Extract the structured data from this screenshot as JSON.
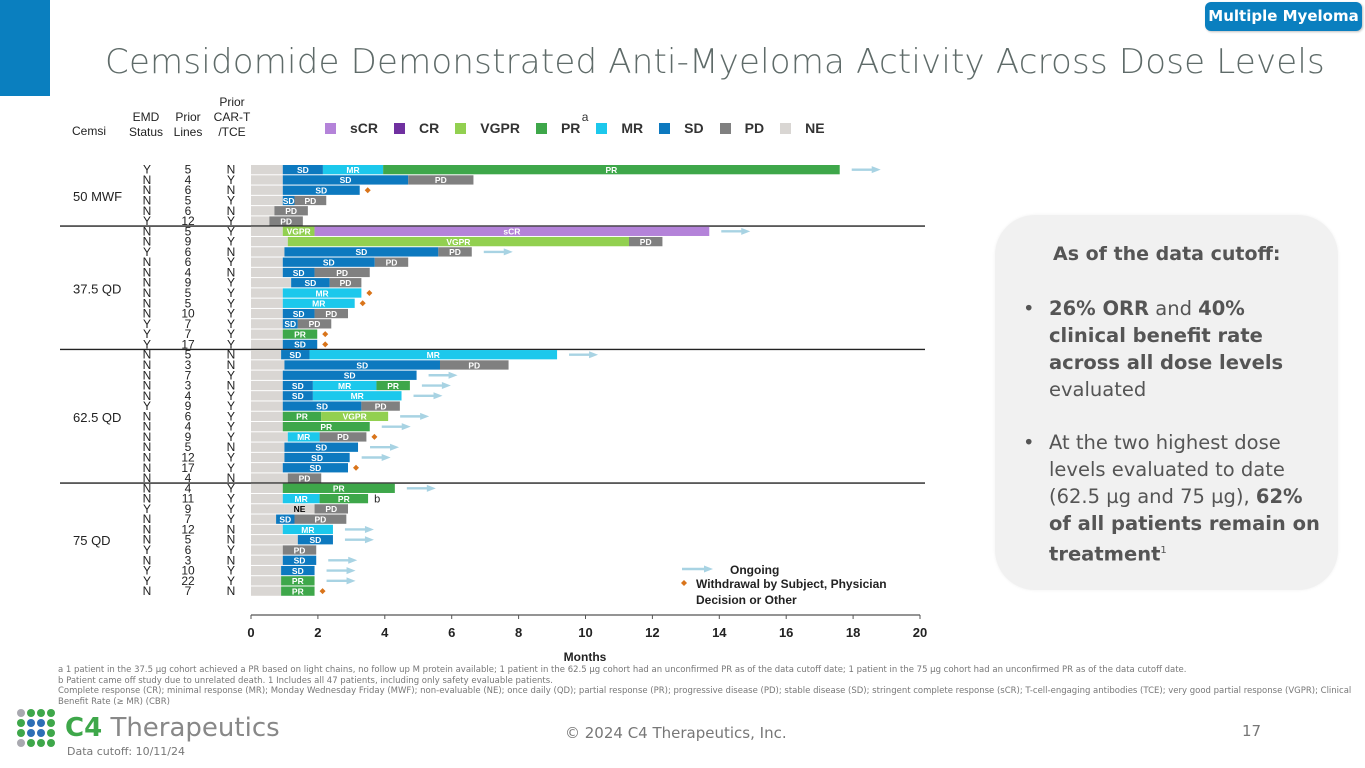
{
  "header": {
    "topic_badge": "Multiple Myeloma",
    "title": "Cemsidomide Demonstrated Anti-Myeloma Activity Across Dose Levels"
  },
  "table_headers": {
    "cemsi": "Cemsi",
    "emd_line1": "EMD",
    "emd_line2": "Status",
    "prior_lines_line1": "Prior",
    "prior_lines_line2": "Lines",
    "prior_cart_line1": "Prior",
    "prior_cart_line2": "CAR-T",
    "prior_cart_line3": "/TCE"
  },
  "legend": {
    "items": [
      {
        "label": "sCR",
        "color": "#b483d9"
      },
      {
        "label": "CR",
        "color": "#7030a0"
      },
      {
        "label": "VGPR",
        "color": "#92d050"
      },
      {
        "label": "PR",
        "color": "#3ea74a",
        "superscript": "a"
      },
      {
        "label": "MR",
        "color": "#1cc8ec"
      },
      {
        "label": "SD",
        "color": "#0d79bf"
      },
      {
        "label": "PD",
        "color": "#808080"
      },
      {
        "label": "NE",
        "color": "#d9d6d3"
      }
    ],
    "ongoing": "Ongoing",
    "withdrawal_line1": "Withdrawal by Subject, Physician",
    "withdrawal_line2": "Decision or Other"
  },
  "chart_data": {
    "type": "swimmer",
    "title": "Cemsidomide Demonstrated Anti-Myeloma Activity Across Dose Levels",
    "xlabel": "Months",
    "ylabel": "",
    "xlim": [
      0,
      20
    ],
    "xticks": [
      0,
      2,
      4,
      6,
      8,
      10,
      12,
      14,
      16,
      18,
      20
    ],
    "colors": {
      "sCR": "#b483d9",
      "CR": "#7030a0",
      "VGPR": "#92d050",
      "PR": "#3ea74a",
      "MR": "#1cc8ec",
      "SD": "#0d79bf",
      "PD": "#808080",
      "NE": "#d9d6d3",
      "baseline": "#d9d6d3",
      "ongoing": "#a8d3e3",
      "withdrawal": "#d9741a"
    },
    "cohorts": [
      {
        "name": "50 MWF",
        "patients": [
          {
            "emd": "Y",
            "lines": "5",
            "cart": "N",
            "segments": [
              [
                "SD",
                0.95,
                2.15
              ],
              [
                "MR",
                2.15,
                3.95
              ],
              [
                "PR",
                3.95,
                17.6
              ]
            ],
            "ongoing": true
          },
          {
            "emd": "N",
            "lines": "4",
            "cart": "Y",
            "segments": [
              [
                "SD",
                0.95,
                4.7
              ],
              [
                "PD",
                4.7,
                6.65
              ]
            ]
          },
          {
            "emd": "N",
            "lines": "6",
            "cart": "N",
            "segments": [
              [
                "SD",
                0.95,
                3.25
              ]
            ],
            "withdrawal": true
          },
          {
            "emd": "N",
            "lines": "5",
            "cart": "Y",
            "segments": [
              [
                "SD",
                0.95,
                1.3
              ],
              [
                "PD",
                1.3,
                2.25
              ]
            ]
          },
          {
            "emd": "N",
            "lines": "6",
            "cart": "N",
            "segments": [
              [
                "PD",
                0.7,
                1.7
              ]
            ]
          },
          {
            "emd": "Y",
            "lines": "12",
            "cart": "Y",
            "segments": [
              [
                "PD",
                0.55,
                1.55
              ]
            ]
          }
        ]
      },
      {
        "name": "37.5 QD",
        "patients": [
          {
            "emd": "N",
            "lines": "5",
            "cart": "Y",
            "segments": [
              [
                "VGPR",
                0.95,
                1.9
              ],
              [
                "sCR",
                1.9,
                13.7
              ]
            ],
            "ongoing": true
          },
          {
            "emd": "N",
            "lines": "9",
            "cart": "Y",
            "segments": [
              [
                "VGPR",
                1.1,
                11.3
              ],
              [
                "PD",
                11.3,
                12.3
              ]
            ]
          },
          {
            "emd": "Y",
            "lines": "6",
            "cart": "N",
            "segments": [
              [
                "SD",
                1.0,
                5.6
              ],
              [
                "PD",
                5.6,
                6.6
              ]
            ],
            "ongoing": true
          },
          {
            "emd": "N",
            "lines": "6",
            "cart": "Y",
            "segments": [
              [
                "SD",
                0.95,
                3.7
              ],
              [
                "PD",
                3.7,
                4.7
              ]
            ]
          },
          {
            "emd": "N",
            "lines": "4",
            "cart": "N",
            "segments": [
              [
                "SD",
                0.95,
                1.9
              ],
              [
                "PD",
                1.9,
                3.55
              ]
            ]
          },
          {
            "emd": "N",
            "lines": "9",
            "cart": "Y",
            "segments": [
              [
                "SD",
                1.2,
                2.35
              ],
              [
                "PD",
                2.35,
                3.3
              ]
            ]
          },
          {
            "emd": "N",
            "lines": "5",
            "cart": "Y",
            "segments": [
              [
                "MR",
                0.95,
                3.3
              ]
            ],
            "withdrawal": true
          },
          {
            "emd": "N",
            "lines": "5",
            "cart": "Y",
            "segments": [
              [
                "MR",
                0.95,
                3.1
              ]
            ],
            "withdrawal": true
          },
          {
            "emd": "N",
            "lines": "10",
            "cart": "Y",
            "segments": [
              [
                "SD",
                0.95,
                1.9
              ],
              [
                "PD",
                1.9,
                2.9
              ]
            ]
          },
          {
            "emd": "Y",
            "lines": "7",
            "cart": "Y",
            "segments": [
              [
                "SD",
                0.95,
                1.4
              ],
              [
                "PD",
                1.4,
                2.4
              ]
            ]
          },
          {
            "emd": "Y",
            "lines": "7",
            "cart": "Y",
            "segments": [
              [
                "PR",
                0.95,
                1.98
              ]
            ],
            "withdrawal": true
          },
          {
            "emd": "Y",
            "lines": "17",
            "cart": "Y",
            "segments": [
              [
                "SD",
                0.95,
                1.98
              ]
            ],
            "withdrawal": true
          }
        ]
      },
      {
        "name": "62.5 QD",
        "patients": [
          {
            "emd": "N",
            "lines": "5",
            "cart": "N",
            "segments": [
              [
                "SD",
                0.9,
                1.75
              ],
              [
                "MR",
                1.75,
                9.15
              ]
            ],
            "ongoing": true
          },
          {
            "emd": "N",
            "lines": "3",
            "cart": "N",
            "segments": [
              [
                "SD",
                1.0,
                5.65
              ],
              [
                "PD",
                5.65,
                7.7
              ]
            ]
          },
          {
            "emd": "N",
            "lines": "7",
            "cart": "Y",
            "segments": [
              [
                "SD",
                0.95,
                4.95
              ]
            ],
            "ongoing": true
          },
          {
            "emd": "N",
            "lines": "3",
            "cart": "N",
            "segments": [
              [
                "SD",
                0.95,
                1.85
              ],
              [
                "MR",
                1.85,
                3.75
              ],
              [
                "PR",
                3.75,
                4.75
              ]
            ],
            "ongoing": true
          },
          {
            "emd": "N",
            "lines": "4",
            "cart": "Y",
            "segments": [
              [
                "SD",
                0.95,
                1.85
              ],
              [
                "MR",
                1.85,
                4.5
              ]
            ],
            "ongoing": true
          },
          {
            "emd": "Y",
            "lines": "9",
            "cart": "Y",
            "segments": [
              [
                "SD",
                0.95,
                3.3
              ],
              [
                "PD",
                3.3,
                4.45
              ]
            ]
          },
          {
            "emd": "N",
            "lines": "6",
            "cart": "Y",
            "segments": [
              [
                "PR",
                0.95,
                2.1
              ],
              [
                "VGPR",
                2.1,
                4.1
              ]
            ],
            "ongoing": true
          },
          {
            "emd": "N",
            "lines": "4",
            "cart": "Y",
            "segments": [
              [
                "PR",
                0.95,
                3.55
              ]
            ],
            "ongoing": true
          },
          {
            "emd": "N",
            "lines": "9",
            "cart": "Y",
            "segments": [
              [
                "MR",
                1.1,
                2.05
              ],
              [
                "PD",
                2.05,
                3.45
              ]
            ],
            "withdrawal": true
          },
          {
            "emd": "N",
            "lines": "5",
            "cart": "N",
            "segments": [
              [
                "SD",
                1.0,
                3.2
              ]
            ],
            "ongoing": true
          },
          {
            "emd": "N",
            "lines": "12",
            "cart": "Y",
            "segments": [
              [
                "SD",
                1.0,
                2.95
              ]
            ],
            "ongoing": true
          },
          {
            "emd": "N",
            "lines": "17",
            "cart": "Y",
            "segments": [
              [
                "SD",
                0.95,
                2.9
              ]
            ],
            "withdrawal": true
          },
          {
            "emd": "N",
            "lines": "4",
            "cart": "N",
            "segments": [
              [
                "PD",
                1.1,
                2.1
              ]
            ]
          }
        ]
      },
      {
        "name": "75 QD",
        "patients": [
          {
            "emd": "N",
            "lines": "4",
            "cart": "Y",
            "segments": [
              [
                "PR",
                0.95,
                4.3
              ]
            ],
            "ongoing": true
          },
          {
            "emd": "N",
            "lines": "11",
            "cart": "Y",
            "segments": [
              [
                "MR",
                0.95,
                2.05
              ],
              [
                "PR",
                2.05,
                3.5
              ]
            ],
            "note": "b"
          },
          {
            "emd": "Y",
            "lines": "9",
            "cart": "Y",
            "segments": [
              [
                "NE",
                1.0,
                1.9
              ],
              [
                "PD",
                1.9,
                2.9
              ]
            ]
          },
          {
            "emd": "N",
            "lines": "7",
            "cart": "Y",
            "segments": [
              [
                "SD",
                0.75,
                1.3
              ],
              [
                "PD",
                1.3,
                2.85
              ]
            ]
          },
          {
            "emd": "N",
            "lines": "12",
            "cart": "N",
            "segments": [
              [
                "MR",
                0.95,
                2.45
              ]
            ],
            "ongoing": true
          },
          {
            "emd": "N",
            "lines": "5",
            "cart": "N",
            "segments": [
              [
                "SD",
                1.4,
                2.45
              ]
            ],
            "ongoing": true
          },
          {
            "emd": "Y",
            "lines": "6",
            "cart": "Y",
            "segments": [
              [
                "PD",
                0.95,
                1.95
              ]
            ]
          },
          {
            "emd": "N",
            "lines": "3",
            "cart": "N",
            "segments": [
              [
                "SD",
                0.95,
                1.95
              ]
            ],
            "ongoing": true
          },
          {
            "emd": "Y",
            "lines": "10",
            "cart": "Y",
            "segments": [
              [
                "SD",
                0.9,
                1.9
              ]
            ],
            "ongoing": true
          },
          {
            "emd": "Y",
            "lines": "22",
            "cart": "Y",
            "segments": [
              [
                "PR",
                0.9,
                1.9
              ]
            ],
            "ongoing": true
          },
          {
            "emd": "N",
            "lines": "7",
            "cart": "N",
            "segments": [
              [
                "PR",
                0.9,
                1.9
              ]
            ],
            "withdrawal": true
          }
        ]
      }
    ]
  },
  "callout": {
    "heading": "As of the data cutoff:",
    "bullet1_bold1": "26% ORR",
    "bullet1_text1": " and ",
    "bullet1_bold2": "40% clinical benefit rate across all dose levels",
    "bullet1_text2": " evaluated",
    "bullet2_text": "At the two highest dose levels evaluated to date (62.5 µg and 75 µg), ",
    "bullet2_bold": "62% of all patients remain on treatment",
    "bullet2_sup": "1"
  },
  "footnotes": {
    "line1": "a 1 patient in the 37.5 µg cohort achieved a PR based on light chains, no follow up M protein available; 1 patient in the 62.5 µg cohort had an unconfirmed PR as of the data cutoff date; 1 patient in the 75 µg cohort had an unconfirmed PR as of the data cutoff date.",
    "line2": "b Patient came off study due to unrelated death. 1 Includes all 47 patients, including only safety evaluable patients.",
    "line3": "Complete response (CR); minimal response (MR); Monday Wednesday Friday (MWF); non-evaluable (NE); once daily (QD); partial response (PR); progressive disease (PD); stable disease (SD); stringent complete response (sCR); T-cell-engaging   antibodies (TCE); very good partial response (VGPR); Clinical Benefit Rate (≥ MR) (CBR)"
  },
  "footer": {
    "logo_c4": "C4",
    "logo_name": "Therapeutics",
    "data_cutoff": "Data cutoff: 10/11/24",
    "copyright": "© 2024 C4 Therapeutics, Inc.",
    "page_number": "17"
  }
}
